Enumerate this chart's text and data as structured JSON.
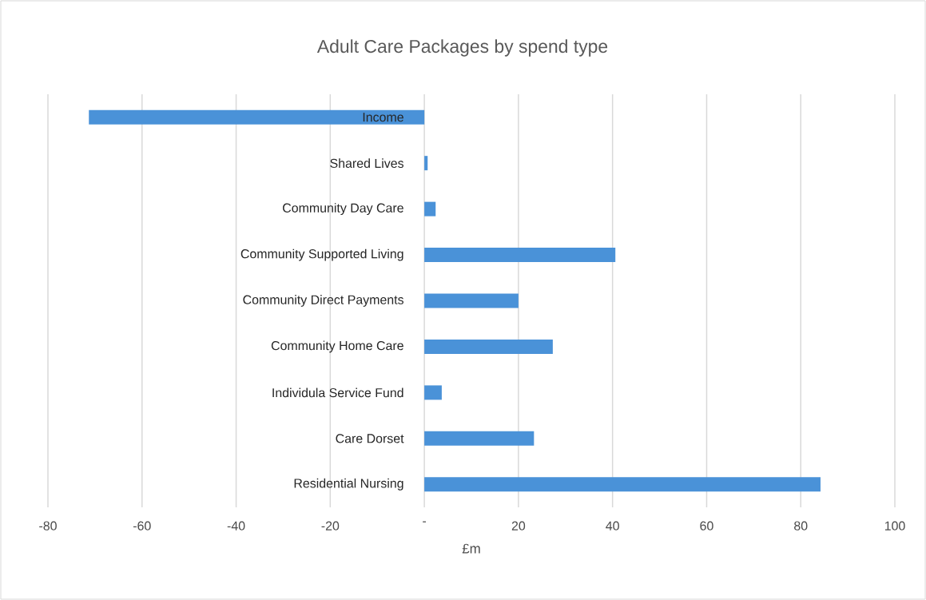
{
  "chart_data": {
    "type": "bar",
    "orientation": "horizontal",
    "title": "Adult Care Packages by spend type",
    "xlabel": "£m",
    "categories": [
      "Income",
      "Shared Lives",
      "Community Day Care",
      "Community Supported Living",
      "Community Direct Payments",
      "Community Home Care",
      "Individula Service Fund",
      "Care Dorset",
      "Residential Nursing"
    ],
    "values": [
      -71.3,
      0.7,
      2.4,
      40.6,
      20.0,
      27.3,
      3.7,
      23.3,
      84.2
    ],
    "color": "#4a92d8",
    "xlim": [
      -80,
      100
    ],
    "xticks": [
      -80,
      -60,
      -40,
      -20,
      {
        "value": 0,
        "label": "-"
      },
      20,
      40,
      60,
      80,
      100
    ],
    "grid": "x"
  }
}
